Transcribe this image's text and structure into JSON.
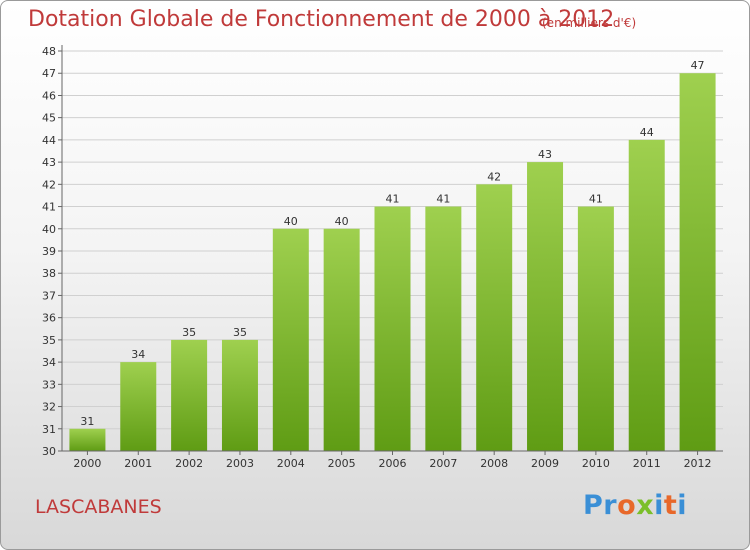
{
  "header": {
    "title": "Dotation Globale de Fonctionnement de 2000 à 2012",
    "subtitle": "(en milliers d'€)"
  },
  "footer": {
    "commune": "LASCABANES",
    "logo_text": "Proxiti",
    "logo_letter_colors": [
      "#3a8fd6",
      "#3a8fd6",
      "#e8682a",
      "#7bbf2a",
      "#3a8fd6",
      "#e8682a",
      "#3a8fd6"
    ]
  },
  "colors": {
    "title": "#c03a3a",
    "bar_top": "#9fd04f",
    "bar_bottom": "#5f9c14",
    "grid": "#d0d0d0",
    "axis": "#666666",
    "label": "#333333"
  },
  "chart_data": {
    "type": "bar",
    "categories": [
      "2000",
      "2001",
      "2002",
      "2003",
      "2004",
      "2005",
      "2006",
      "2007",
      "2008",
      "2009",
      "2010",
      "2011",
      "2012"
    ],
    "values": [
      31,
      34,
      35,
      35,
      40,
      40,
      41,
      41,
      42,
      43,
      41,
      44,
      47
    ],
    "data_labels": [
      "31",
      "34",
      "35",
      "35",
      "40",
      "40",
      "41",
      "41",
      "42",
      "43",
      "41",
      "44",
      "47"
    ],
    "yticks": [
      "30",
      "31",
      "32",
      "33",
      "34",
      "35",
      "36",
      "37",
      "38",
      "39",
      "40",
      "41",
      "42",
      "43",
      "44",
      "45",
      "46",
      "47",
      "48"
    ],
    "ylim": [
      30,
      48
    ],
    "grid": true,
    "legend": "none"
  }
}
